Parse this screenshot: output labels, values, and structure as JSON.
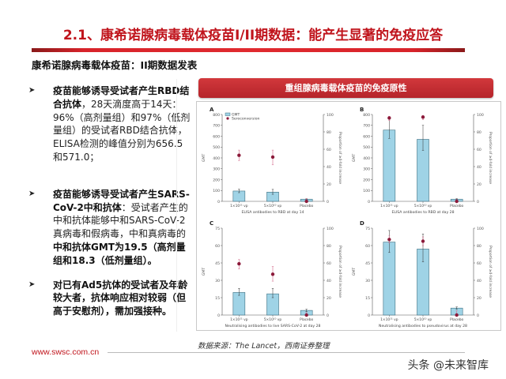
{
  "slide": {
    "title": "2.1、康希诺腺病毒载体疫苗I/II期数据：能产生显著的免疫应答",
    "subtitle": "康希诺腺病毒载体疫苗：II期数据发表",
    "accent_color": "#c0141c"
  },
  "bullets": [
    {
      "bold": "疫苗能够诱导受试者产生RBD结合抗体",
      "text": "，28天滴度高于14天：96%（高剂量组）和97%（低剂量组）的受试者RBD结合抗体，ELISA检测的峰值分别为656.5和571.0；",
      "bold_tail": ""
    },
    {
      "bold": "疫苗能够诱导受试者产生SARS-CoV-2中和抗体",
      "text": "：受试者产生的中和抗体能够中和SARS-CoV-2真病毒和假病毒，中和真病毒的",
      "bold_tail": "中和抗体GMT为19.5（高剂量组和18.3（低剂量组）。"
    },
    {
      "bold": "对已有Ad5抗体的受试者及年龄较大者，抗体响应相对较弱（但高于安慰剂），需加强接种。",
      "text": "",
      "bold_tail": ""
    }
  ],
  "figure": {
    "header": "重组腺病毒载体疫苗的免疫原性",
    "legend": {
      "gmt": "GMT",
      "seroconversion": "Seroconversion"
    },
    "source": "数据来源：The Lancet，西南证券整理"
  },
  "chart_data": [
    {
      "type": "bar",
      "panel": "A",
      "title": "",
      "xlabel": "ELISA antibodies to RBD at day 14",
      "ylabel": "GMT",
      "y2label": "Proportion of ≥4-fold increase",
      "categories": [
        "1×10¹¹ vp",
        "5×10¹⁰ vp",
        "Placebo"
      ],
      "ylim": [
        0,
        800
      ],
      "yticks": [
        0,
        100,
        200,
        300,
        400,
        500,
        600,
        700,
        800
      ],
      "y2lim": [
        0,
        100
      ],
      "y2ticks": [
        0,
        20,
        40,
        60,
        80,
        100
      ],
      "series": [
        {
          "name": "GMT",
          "kind": "bar",
          "values": [
            95,
            85,
            20
          ],
          "err_low": [
            80,
            65,
            15
          ],
          "err_high": [
            112,
            110,
            25
          ]
        },
        {
          "name": "Seroconversion",
          "kind": "point",
          "axis": "y2",
          "values": [
            53,
            51,
            0
          ],
          "err_low": [
            47,
            42,
            0
          ],
          "err_high": [
            59,
            59,
            3
          ]
        }
      ]
    },
    {
      "type": "bar",
      "panel": "B",
      "xlabel": "ELISA antibodies to RBD at day 28",
      "ylabel": "GMT",
      "y2label": "Proportion of ≥4-fold increase",
      "categories": [
        "1×10¹¹ vp",
        "5×10¹⁰ vp",
        "Placebo"
      ],
      "ylim": [
        0,
        800
      ],
      "yticks": [
        0,
        100,
        200,
        300,
        400,
        500,
        600,
        700,
        800
      ],
      "y2lim": [
        0,
        100
      ],
      "y2ticks": [
        0,
        20,
        40,
        60,
        80,
        100
      ],
      "series": [
        {
          "name": "GMT",
          "kind": "bar",
          "values": [
            656.5,
            571.0,
            20
          ],
          "err_low": [
            580,
            470,
            15
          ],
          "err_high": [
            760,
            700,
            25
          ]
        },
        {
          "name": "Seroconversion",
          "kind": "point",
          "axis": "y2",
          "values": [
            96,
            97,
            0
          ],
          "err_low": [
            93,
            94,
            0
          ],
          "err_high": [
            98,
            99,
            2
          ]
        }
      ]
    },
    {
      "type": "bar",
      "panel": "C",
      "xlabel": "Neutralising antibodies to live SARS-CoV-2 at day 28",
      "ylabel": "GMT",
      "y2label": "Proportion of ≥4-fold increase",
      "categories": [
        "1×10¹¹ vp",
        "5×10¹⁰ vp",
        "Placebo"
      ],
      "ylim": [
        0,
        75
      ],
      "yticks": [
        0,
        15,
        30,
        45,
        60,
        75
      ],
      "y2lim": [
        0,
        100
      ],
      "y2ticks": [
        0,
        20,
        40,
        60,
        80,
        100
      ],
      "series": [
        {
          "name": "GMT",
          "kind": "bar",
          "values": [
            19.5,
            18.3,
            4
          ],
          "err_low": [
            17,
            15,
            3
          ],
          "err_high": [
            23,
            23,
            5
          ]
        },
        {
          "name": "Seroconversion",
          "kind": "point",
          "axis": "y2",
          "values": [
            59,
            47,
            0
          ],
          "err_low": [
            53,
            39,
            0
          ],
          "err_high": [
            64,
            56,
            3
          ]
        }
      ]
    },
    {
      "type": "bar",
      "panel": "D",
      "xlabel": "Neutralising antibodies to pseudovirus at day 28",
      "ylabel": "GMT",
      "y2label": "Proportion of ≥4-fold increase",
      "categories": [
        "1×10¹¹ vp",
        "5×10¹⁰ vp",
        "Placebo"
      ],
      "ylim": [
        0,
        75
      ],
      "yticks": [
        0,
        15,
        30,
        45,
        60,
        75
      ],
      "y2lim": [
        0,
        100
      ],
      "y2ticks": [
        0,
        20,
        40,
        60,
        80,
        100
      ],
      "series": [
        {
          "name": "GMT",
          "kind": "bar",
          "values": [
            63,
            57,
            6
          ],
          "err_low": [
            54,
            46,
            5
          ],
          "err_high": [
            73,
            70,
            7
          ]
        },
        {
          "name": "Seroconversion",
          "kind": "point",
          "axis": "y2",
          "values": [
            87,
            85,
            0
          ],
          "err_low": [
            83,
            80,
            0
          ],
          "err_high": [
            91,
            90,
            5
          ]
        }
      ]
    }
  ],
  "footer": {
    "url": "www.swsc.com.cn",
    "watermark": "头条 @未来智库"
  }
}
